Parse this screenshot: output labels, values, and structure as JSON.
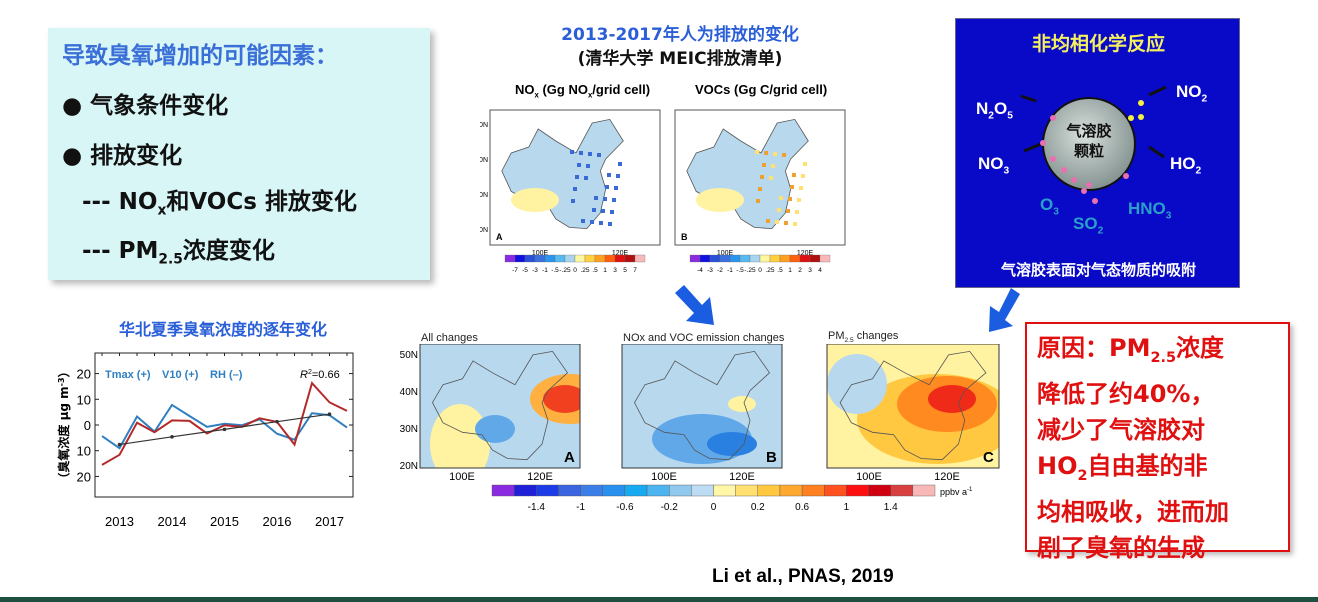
{
  "factors": {
    "title": "导致臭氧增加的可能因素：",
    "bullets": [
      "气象条件变化",
      "排放变化"
    ],
    "sub_items": [
      {
        "prefix": "--- ",
        "main": "NO",
        "sub": "x",
        "rest": "和VOCs 排放变化"
      },
      {
        "prefix": "--- ",
        "main": "PM",
        "sub": "2.5",
        "rest": "浓度变化"
      }
    ]
  },
  "emissions": {
    "title": "2013-2017年人为排放的变化",
    "subtitle": "(清华大学 MEIC排放清单)",
    "panels": [
      {
        "label_main": "NO",
        "label_sub": "x",
        "label_rest": " (Gg NO",
        "label_sub2": "x",
        "label_end": "/grid cell)",
        "letter": "A",
        "colorbar_ticks": [
          "-7",
          "-5",
          "-3",
          "-1",
          "-.5",
          "-.25",
          "0",
          ".25",
          ".5",
          "1",
          "3",
          "5",
          "7"
        ]
      },
      {
        "label_main": "VOCs",
        "label_sub": "",
        "label_rest": " (Gg C/grid cell)",
        "label_sub2": "",
        "label_end": "",
        "letter": "B",
        "colorbar_ticks": [
          "-4",
          "-3",
          "-2",
          "-1",
          "-.5",
          "-.25",
          "0",
          ".25",
          ".5",
          "1",
          "2",
          "3",
          "4"
        ]
      }
    ],
    "lat_ticks": [
      "50N",
      "40N",
      "30N",
      "20N"
    ],
    "lon_ticks": [
      "100E",
      "120E"
    ]
  },
  "hetero": {
    "title": "非均相化学反应",
    "particle": [
      "气溶胶",
      "颗粒"
    ],
    "species": {
      "n2o5": [
        "N",
        "2",
        "O",
        "5"
      ],
      "no3": [
        "NO",
        "3"
      ],
      "no2": [
        "NO",
        "2"
      ],
      "ho2": [
        "HO",
        "2"
      ],
      "o3": [
        "O",
        "3"
      ],
      "so2": [
        "SO",
        "2"
      ],
      "hno3": [
        "HNO",
        "3"
      ]
    },
    "caption": "气溶胶表面对气态物质的吸附"
  },
  "ozone_chart_title": "华北夏季臭氧浓度的逐年变化",
  "chart_data": {
    "type": "line",
    "title": "华北夏季臭氧浓度的逐年变化",
    "ylabel": "（臭氧浓度 μg m-3）",
    "ylabel_parts": {
      "text": "（臭氧浓度 μg m",
      "sup": "-3",
      "close": "）"
    },
    "x_tick_labels": [
      "2013",
      "2014",
      "2015",
      "2016",
      "2017"
    ],
    "y_tick_values": [
      20,
      10,
      0,
      -10,
      -20
    ],
    "y_tick_labels": [
      "20",
      "10",
      "0",
      "10",
      "20"
    ],
    "ylim": [
      -28,
      28
    ],
    "legend": [
      "Tmax (+)",
      "V10 (+)",
      "RH (–)"
    ],
    "annotation": {
      "text": "R",
      "sup": "2",
      "rest": "=0.66"
    },
    "x": [
      "2013-06",
      "2013-07",
      "2013-08",
      "2014-06",
      "2014-07",
      "2014-08",
      "2015-06",
      "2015-07",
      "2015-08",
      "2016-06",
      "2016-07",
      "2016-08",
      "2017-06",
      "2017-07",
      "2017-08"
    ],
    "series": [
      {
        "color": "#2f7fc1",
        "values": [
          -4.3,
          -9,
          3.3,
          -2.6,
          7.8,
          3.5,
          -0.7,
          0.5,
          -0.1,
          2.2,
          -3.4,
          -5.7,
          4.6,
          3.8,
          -1
        ]
      },
      {
        "color": "#b32a2a",
        "values": [
          -15.5,
          -11.6,
          0.9,
          -2.8,
          1.8,
          1.6,
          -3.3,
          -0.1,
          -0.7,
          2.6,
          1.2,
          -7.6,
          16.3,
          8.8,
          5.5
        ]
      },
      {
        "color": "#333333",
        "trend": true,
        "values": [
          null,
          -7.6,
          null,
          null,
          -4.6,
          null,
          null,
          -1.7,
          null,
          null,
          1.3,
          null,
          null,
          4.2,
          null
        ]
      }
    ],
    "grid": true
  },
  "changes": {
    "panels": [
      {
        "title": "All changes",
        "letter": "A"
      },
      {
        "title": "NOx and VOC emission changes",
        "letter": "B"
      },
      {
        "title_main": "PM",
        "title_sub": "2.5",
        "title_rest": " changes",
        "letter": "C"
      }
    ],
    "lat_ticks": [
      "50N",
      "40N",
      "30N",
      "20N"
    ],
    "lon_ticks": [
      "100E",
      "120E"
    ],
    "colorbar_ticks": [
      "-1.4",
      "-1",
      "-0.6",
      "-0.2",
      "0",
      "0.2",
      "0.6",
      "1",
      "1.4"
    ],
    "unit": "ppbv a",
    "unit_sup": "-1",
    "colorbar_colors": [
      "#8a2be2",
      "#2020d8",
      "#1c3ce8",
      "#3a64e0",
      "#3c7ee8",
      "#2a90ee",
      "#18aaf0",
      "#4cb4ee",
      "#90c8ee",
      "#bcdcf4",
      "#fff6a8",
      "#ffe070",
      "#ffc840",
      "#ffa830",
      "#ff8020",
      "#ff5020",
      "#ff1010",
      "#d00010",
      "#d84040",
      "#f8b8b8"
    ]
  },
  "reason": {
    "line1_main": "原因：PM",
    "line1_sub": "2.5",
    "line1_rest": "浓度",
    "line2": "降低了约40%，",
    "line3": "减少了气溶胶对",
    "line4_main": "HO",
    "line4_sub": "2",
    "line4_rest": "自由基的非",
    "line5": "均相吸收，进而加",
    "line6": "剧了臭氧的生成"
  },
  "citation": "Li et al., PNAS, 2019",
  "colors": {
    "accent_blue": "#3a6fd8",
    "reason_red": "#e01010",
    "hetero_bg": "#0909c8",
    "factors_bg": "#d8f6f6"
  }
}
